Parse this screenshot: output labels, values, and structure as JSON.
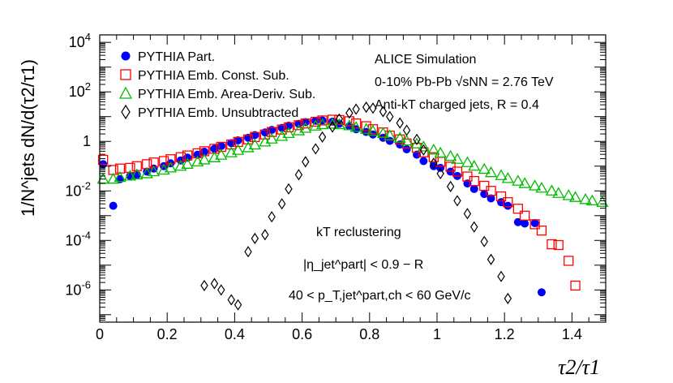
{
  "chart_data": {
    "type": "scatter",
    "xlabel": "τ2/τ1",
    "ylabel": "1/N^jets dN/d(τ2/τ1)",
    "xlim": [
      0,
      1.5
    ],
    "ylim": [
      5e-08,
      20000.0
    ],
    "yscale": "log",
    "x_tick_labels": [
      "0",
      "0.2",
      "0.4",
      "0.6",
      "0.8",
      "1",
      "1.2",
      "1.4"
    ],
    "legend_placement": "top-left",
    "annotations": {
      "title_block": [
        "ALICE Simulation",
        "0-10% Pb-Pb √sNN = 2.76 TeV",
        "Anti-kT charged jets, R = 0.4"
      ],
      "cuts": [
        "kT reclustering",
        "|η_jet^part| < 0.9 − R",
        "40 < p_T,jet^part,ch < 60 GeV/c"
      ]
    },
    "series": [
      {
        "name": "PYTHIA Part.",
        "color": "#0000ff",
        "marker": "filled-circle",
        "x": [
          0.01,
          0.04,
          0.06,
          0.09,
          0.11,
          0.14,
          0.16,
          0.19,
          0.21,
          0.24,
          0.26,
          0.29,
          0.31,
          0.34,
          0.36,
          0.39,
          0.41,
          0.44,
          0.46,
          0.49,
          0.51,
          0.54,
          0.56,
          0.59,
          0.61,
          0.64,
          0.66,
          0.69,
          0.71,
          0.74,
          0.76,
          0.79,
          0.81,
          0.84,
          0.86,
          0.89,
          0.91,
          0.94,
          0.96,
          0.99,
          1.01,
          1.04,
          1.06,
          1.09,
          1.11,
          1.14,
          1.16,
          1.19,
          1.21,
          1.24,
          1.26,
          1.29,
          1.31
        ],
        "y": [
          0.12,
          0.0025,
          0.03,
          0.04,
          0.045,
          0.06,
          0.08,
          0.1,
          0.13,
          0.17,
          0.22,
          0.29,
          0.38,
          0.5,
          0.65,
          0.85,
          1.1,
          1.4,
          1.8,
          2.3,
          2.9,
          3.5,
          4.3,
          5.1,
          6.0,
          6.8,
          7.0,
          6.3,
          5.2,
          4.1,
          3.1,
          2.4,
          1.9,
          1.4,
          1.05,
          0.75,
          0.48,
          0.29,
          0.16,
          0.1,
          0.085,
          0.06,
          0.04,
          0.02,
          0.012,
          0.0075,
          0.005,
          0.0035,
          0.0025,
          0.00055,
          0.00048,
          0.0005,
          8e-07
        ]
      },
      {
        "name": "PYTHIA Emb. Const. Sub.",
        "color": "#ff0000",
        "marker": "open-square",
        "x": [
          0.01,
          0.04,
          0.06,
          0.09,
          0.11,
          0.14,
          0.16,
          0.19,
          0.21,
          0.24,
          0.26,
          0.29,
          0.31,
          0.34,
          0.36,
          0.39,
          0.41,
          0.44,
          0.46,
          0.49,
          0.51,
          0.54,
          0.56,
          0.59,
          0.61,
          0.64,
          0.66,
          0.69,
          0.71,
          0.74,
          0.76,
          0.79,
          0.81,
          0.84,
          0.86,
          0.89,
          0.91,
          0.94,
          0.96,
          0.99,
          1.01,
          1.04,
          1.06,
          1.09,
          1.11,
          1.14,
          1.16,
          1.19,
          1.21,
          1.24,
          1.26,
          1.29,
          1.31,
          1.34,
          1.36,
          1.39,
          1.41
        ],
        "y": [
          0.18,
          0.07,
          0.08,
          0.085,
          0.1,
          0.12,
          0.14,
          0.16,
          0.19,
          0.23,
          0.27,
          0.33,
          0.4,
          0.5,
          0.6,
          0.75,
          0.95,
          1.2,
          1.5,
          1.9,
          2.4,
          3.0,
          3.7,
          4.5,
          5.3,
          6.2,
          7.0,
          7.5,
          7.3,
          6.5,
          5.3,
          4.1,
          3.1,
          2.3,
          1.7,
          1.2,
          0.82,
          0.55,
          0.36,
          0.23,
          0.15,
          0.095,
          0.06,
          0.038,
          0.025,
          0.016,
          0.01,
          0.006,
          0.0035,
          0.0019,
          0.001,
          0.00045,
          0.00025,
          7e-05,
          6.5e-05,
          1.5e-05,
          1.5e-06
        ]
      },
      {
        "name": "PYTHIA Emb. Area-Deriv. Sub.",
        "color": "#00bb00",
        "marker": "open-triangle",
        "x": [
          0.01,
          0.04,
          0.06,
          0.09,
          0.11,
          0.14,
          0.16,
          0.19,
          0.21,
          0.24,
          0.26,
          0.29,
          0.31,
          0.34,
          0.36,
          0.39,
          0.41,
          0.44,
          0.46,
          0.49,
          0.51,
          0.54,
          0.56,
          0.59,
          0.61,
          0.64,
          0.66,
          0.69,
          0.71,
          0.74,
          0.76,
          0.79,
          0.81,
          0.84,
          0.86,
          0.89,
          0.91,
          0.94,
          0.96,
          0.99,
          1.01,
          1.04,
          1.06,
          1.09,
          1.11,
          1.14,
          1.16,
          1.19,
          1.21,
          1.24,
          1.26,
          1.29,
          1.31,
          1.34,
          1.36,
          1.39,
          1.41,
          1.44,
          1.46,
          1.49
        ],
        "y": [
          0.03,
          0.03,
          0.035,
          0.04,
          0.045,
          0.05,
          0.06,
          0.07,
          0.085,
          0.1,
          0.12,
          0.15,
          0.18,
          0.22,
          0.28,
          0.35,
          0.44,
          0.56,
          0.72,
          0.95,
          1.25,
          1.6,
          2.1,
          2.7,
          3.4,
          4.2,
          4.8,
          5.0,
          4.8,
          4.3,
          3.7,
          3.1,
          2.6,
          2.1,
          1.7,
          1.35,
          1.05,
          0.8,
          0.6,
          0.45,
          0.34,
          0.25,
          0.19,
          0.14,
          0.1,
          0.075,
          0.055,
          0.042,
          0.032,
          0.025,
          0.02,
          0.016,
          0.013,
          0.01,
          0.008,
          0.0065,
          0.0055,
          0.0045,
          0.004,
          0.0035
        ]
      },
      {
        "name": "PYTHIA Emb. Unsubtracted",
        "color": "#000000",
        "marker": "open-diamond",
        "x": [
          0.31,
          0.34,
          0.36,
          0.39,
          0.41,
          0.44,
          0.46,
          0.49,
          0.51,
          0.54,
          0.56,
          0.59,
          0.61,
          0.64,
          0.66,
          0.69,
          0.71,
          0.74,
          0.76,
          0.79,
          0.81,
          0.84,
          0.86,
          0.89,
          0.91,
          0.94,
          0.96,
          0.99,
          1.01,
          1.04,
          1.06,
          1.09,
          1.11,
          1.14,
          1.16,
          1.19,
          1.21
        ],
        "y": [
          1.5e-06,
          1.8e-06,
          1e-06,
          4e-07,
          2.5e-07,
          3.5e-05,
          0.00012,
          0.00017,
          0.0009,
          0.003,
          0.012,
          0.045,
          0.15,
          0.5,
          1.5,
          3.8,
          8.0,
          14.0,
          20.0,
          24.0,
          22.0,
          16.0,
          10.0,
          5.5,
          2.8,
          1.2,
          0.45,
          0.13,
          0.05,
          0.015,
          0.004,
          0.0012,
          0.00035,
          9e-05,
          1.7e-05,
          3.5e-06,
          4.5e-07
        ]
      }
    ]
  }
}
